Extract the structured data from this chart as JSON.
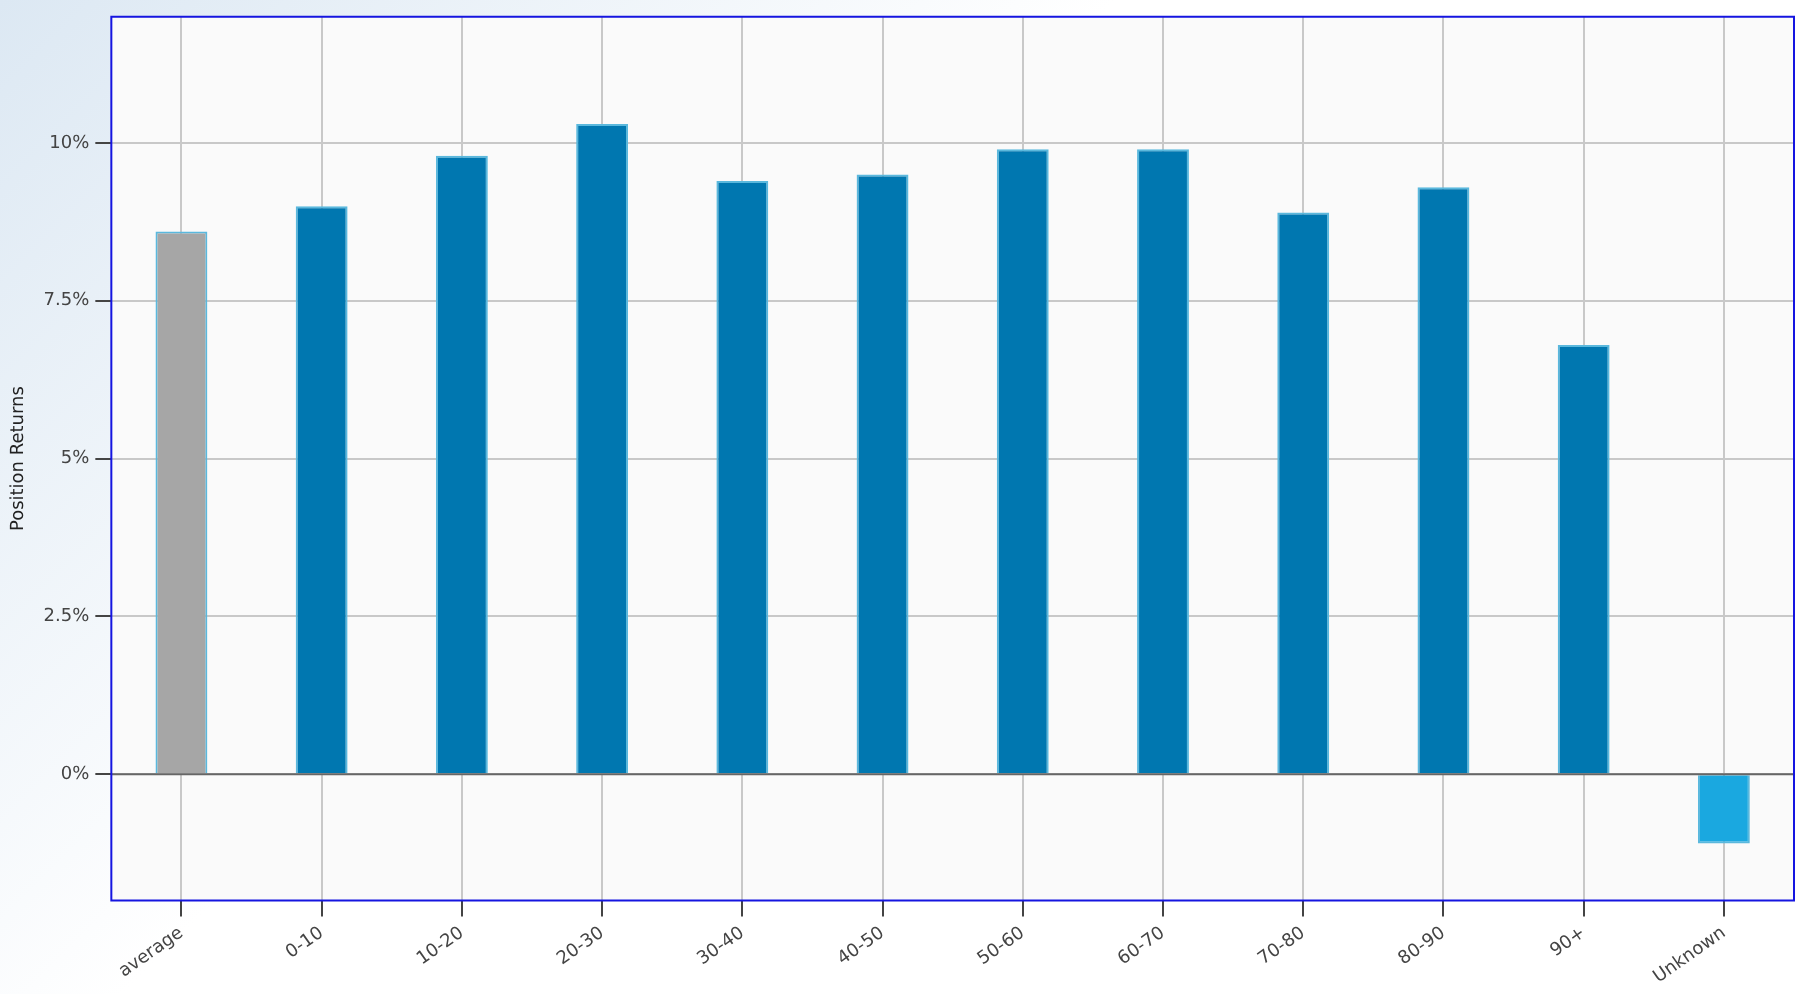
{
  "chart_data": {
    "type": "bar",
    "ylabel": "Position Returns",
    "categories": [
      "average",
      "0-10",
      "10-20",
      "20-30",
      "30-40",
      "40-50",
      "50-60",
      "60-70",
      "70-80",
      "80-90",
      "90+",
      "Unknown"
    ],
    "values": [
      8.6,
      9.0,
      9.8,
      10.3,
      9.4,
      9.5,
      9.9,
      9.9,
      8.9,
      9.3,
      6.8,
      -1.1
    ],
    "colors": [
      "#a6a6a6",
      "#0077b0",
      "#0077b0",
      "#0077b0",
      "#0077b0",
      "#0077b0",
      "#0077b0",
      "#0077b0",
      "#0077b0",
      "#0077b0",
      "#0077b0",
      "#1aa8e0"
    ],
    "ylim": [
      -2,
      12
    ],
    "yticks": [
      {
        "value": 0,
        "label": "0%"
      },
      {
        "value": 2.5,
        "label": "2.5%"
      },
      {
        "value": 5,
        "label": "5%"
      },
      {
        "value": 7.5,
        "label": "7.5%"
      },
      {
        "value": 10,
        "label": "10%"
      }
    ],
    "grid": true,
    "legend": false
  }
}
